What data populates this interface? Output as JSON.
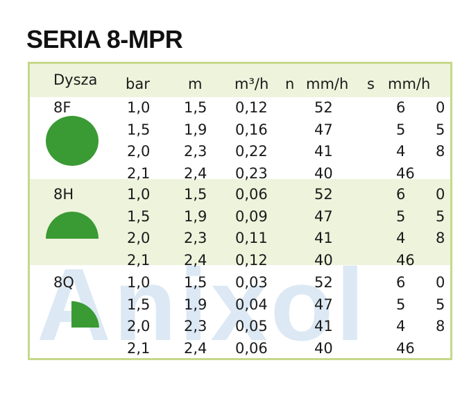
{
  "title": "SERIA 8-MPR",
  "headers": [
    "Dysza",
    "bar",
    "m",
    "m³/h",
    "n",
    "mm/h",
    "s",
    "mm/h"
  ],
  "watermark": "Anixol",
  "colors": {
    "frame": "#c4d98a",
    "band": "#eef3dc",
    "shape": "#3a9a34",
    "watermark": "#d6e6f3"
  },
  "nozzles": [
    {
      "label": "8F",
      "icon": "full-circle-icon",
      "rows": [
        [
          "1,0",
          "1,5",
          "0,12",
          "52",
          "6",
          "0"
        ],
        [
          "1,5",
          "1,9",
          "0,16",
          "47",
          "5",
          "5"
        ],
        [
          "2,0",
          "2,3",
          "0,22",
          "41",
          "4",
          "8"
        ],
        [
          "2,1",
          "2,4",
          "0,23",
          "40",
          "46",
          ""
        ]
      ]
    },
    {
      "label": "8H",
      "icon": "half-circle-icon",
      "rows": [
        [
          "1,0",
          "1,5",
          "0,06",
          "52",
          "6",
          "0"
        ],
        [
          "1,5",
          "1,9",
          "0,09",
          "47",
          "5",
          "5"
        ],
        [
          "2,0",
          "2,3",
          "0,11",
          "41",
          "4",
          "8"
        ],
        [
          "2,1",
          "2,4",
          "0,12",
          "40",
          "46",
          ""
        ]
      ]
    },
    {
      "label": "8Q",
      "icon": "quarter-circle-icon",
      "rows": [
        [
          "1,0",
          "1,5",
          "0,03",
          "52",
          "6",
          "0"
        ],
        [
          "1,5",
          "1,9",
          "0,04",
          "47",
          "5",
          "5"
        ],
        [
          "2,0",
          "2,3",
          "0,05",
          "41",
          "4",
          "8"
        ],
        [
          "2,1",
          "2,4",
          "0,06",
          "40",
          "46",
          ""
        ]
      ]
    }
  ]
}
